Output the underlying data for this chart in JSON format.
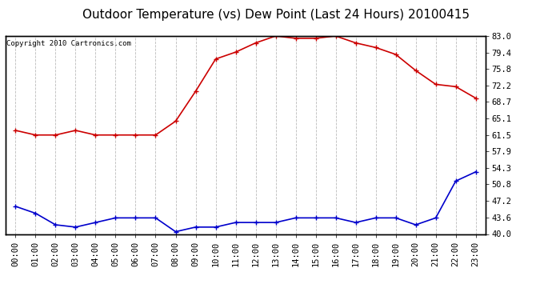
{
  "title": "Outdoor Temperature (vs) Dew Point (Last 24 Hours) 20100415",
  "copyright": "Copyright 2010 Cartronics.com",
  "x_labels": [
    "00:00",
    "01:00",
    "02:00",
    "03:00",
    "04:00",
    "05:00",
    "06:00",
    "07:00",
    "08:00",
    "09:00",
    "10:00",
    "11:00",
    "12:00",
    "13:00",
    "14:00",
    "15:00",
    "16:00",
    "17:00",
    "18:00",
    "19:00",
    "20:00",
    "21:00",
    "22:00",
    "23:00"
  ],
  "temp_red": [
    62.5,
    61.5,
    61.5,
    62.5,
    61.5,
    61.5,
    61.5,
    61.5,
    64.5,
    71.0,
    78.0,
    79.5,
    81.5,
    83.0,
    82.5,
    82.5,
    83.0,
    81.5,
    80.5,
    79.0,
    75.5,
    72.5,
    72.0,
    69.5
  ],
  "dew_blue": [
    46.0,
    44.5,
    42.0,
    41.5,
    42.5,
    43.5,
    43.5,
    43.5,
    40.5,
    41.5,
    41.5,
    42.5,
    42.5,
    42.5,
    43.5,
    43.5,
    43.5,
    42.5,
    43.5,
    43.5,
    42.0,
    43.5,
    51.5,
    53.5
  ],
  "y_ticks": [
    40.0,
    43.6,
    47.2,
    50.8,
    54.3,
    57.9,
    61.5,
    65.1,
    68.7,
    72.2,
    75.8,
    79.4,
    83.0
  ],
  "ylim": [
    40.0,
    83.0
  ],
  "bg_color": "#ffffff",
  "plot_bg_color": "#ffffff",
  "grid_color": "#bbbbbb",
  "line_red": "#cc0000",
  "line_blue": "#0000cc",
  "marker": "+",
  "marker_size": 5,
  "line_width": 1.2,
  "title_fontsize": 11,
  "tick_fontsize": 7.5,
  "copyright_fontsize": 6.5
}
